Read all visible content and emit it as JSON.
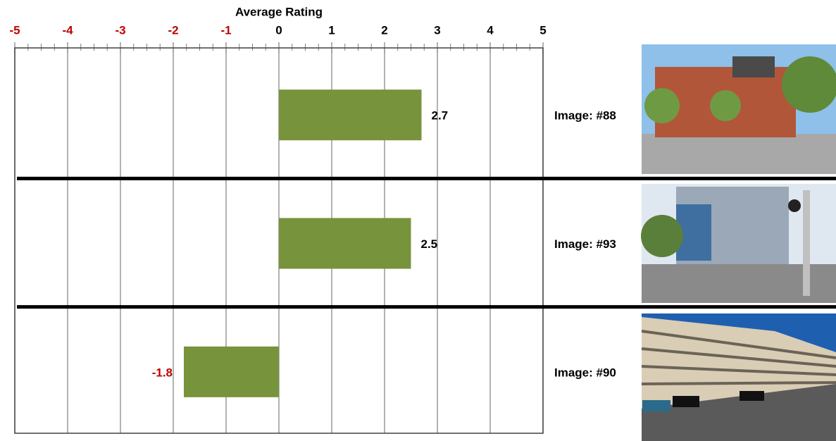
{
  "chart_data": {
    "type": "bar",
    "orientation": "horizontal",
    "x_label": "Average Rating",
    "categories": [
      "Image: #88",
      "Image: #93",
      "Image: #90"
    ],
    "values": [
      2.7,
      2.5,
      -1.8
    ],
    "color": "#77933c",
    "negative_label_color": "#c00000",
    "xlim": [
      -5,
      5
    ],
    "xticks": [
      -5,
      -4,
      -3,
      -2,
      -1,
      0,
      1,
      2,
      3,
      4,
      5
    ],
    "xminorticks": [
      -4.75,
      -4.5,
      -4.25,
      -3.75,
      -3.5,
      -3.25,
      -2.75,
      -2.5,
      -2.25,
      -1.75,
      -1.5,
      -1.25,
      -0.75,
      -0.5,
      -0.25,
      0.25,
      0.5,
      0.75,
      1.25,
      1.5,
      1.75,
      2.25,
      2.5,
      2.75,
      3.25,
      3.5,
      3.75,
      4.25,
      4.5,
      4.75
    ],
    "grid": true
  }
}
